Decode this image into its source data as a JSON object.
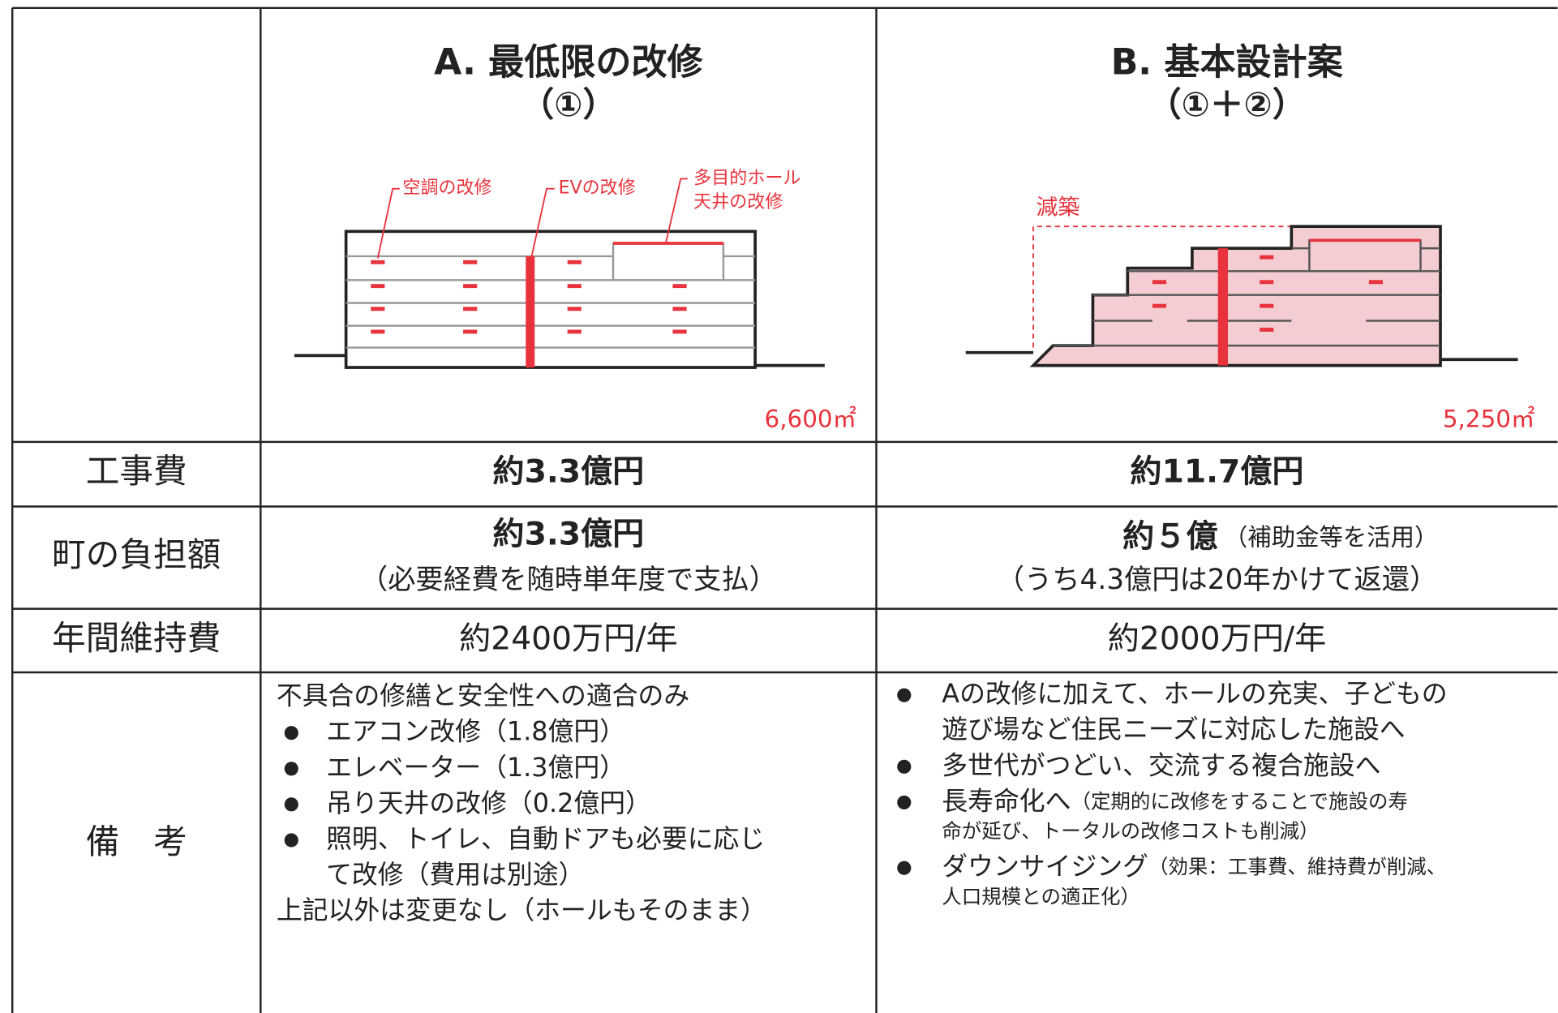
{
  "header": {
    "col_a": {
      "title": "A. 最低限の改修",
      "subtitle": "（①）",
      "labels": [
        "空調の改修",
        "EVの改修",
        "多目的ホール",
        "天井の改修"
      ],
      "area": "6,600㎡"
    },
    "col_b": {
      "title": "B. 基本設計案",
      "subtitle": "（①＋②）",
      "labels": [
        "減築"
      ],
      "area": "5,250㎡"
    }
  },
  "rows": [
    {
      "label": "工事費",
      "a": "約3.3億円",
      "b": "約11.7億円"
    },
    {
      "label": "町の負担額",
      "a": [
        "約3.3億円",
        "（必要経費を随時単年度で支払）"
      ],
      "b": {
        "main": "約５億",
        "note": "（補助金等を活用）",
        "sub": "（うち4.3億円は20年かけて返還）"
      }
    },
    {
      "label": "年間維持費",
      "a": "約2400万円/年",
      "b": "約2000万円/年"
    },
    {
      "label": "備　考",
      "a": {
        "intro": "不具合の修繕と安全性への適合のみ",
        "bullets": [
          [
            "エアコン改修（1.8億円）"
          ],
          [
            "エレベーター（1.3億円）"
          ],
          [
            "吊り天井の改修（0.2億円）"
          ],
          [
            "照明、トイレ、自動ドアも必要に応じ",
            "て改修（費用は別途）"
          ]
        ],
        "outro": "上記以外は変更なし（ホールもそのまま）"
      },
      "b": {
        "bullets": [
          {
            "lines": [
              "Aの改修に加えて、ホールの充実、子どもの",
              "遊び場など住民ニーズに対応した施設へ"
            ]
          },
          {
            "lines": [
              "多世代がつどい、交流する複合施設へ"
            ]
          },
          {
            "main": "長寿命化へ",
            "note": "（定期的に改修をすることで施設の寿",
            "cont": "命が延び、トータルの改修コストも削減）"
          },
          {
            "main": "ダウンサイジング",
            "note": "（効果：工事費、維持費が削減、",
            "cont": "人口規模との適正化）"
          }
        ]
      }
    }
  ]
}
